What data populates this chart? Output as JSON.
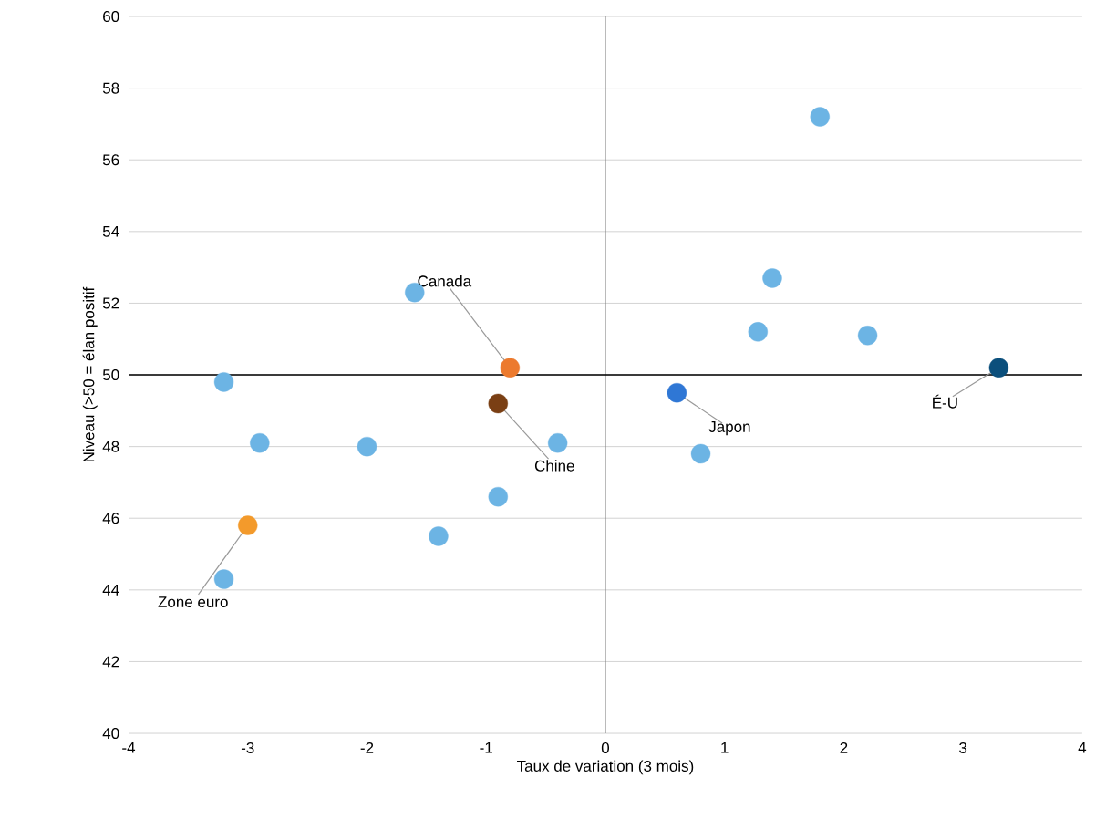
{
  "chart_data": {
    "type": "scatter",
    "xlabel": "Taux de variation (3 mois)",
    "ylabel": "Niveau (>50 = élan positif",
    "x": [
      -3.2,
      -2.9,
      -2.0,
      -3.0,
      -3.2,
      -1.4,
      -0.9,
      -0.9,
      -0.8,
      -1.6,
      -0.4,
      0.6,
      0.8,
      1.28,
      1.4,
      1.8,
      2.2,
      3.3
    ],
    "values": [
      49.8,
      48.1,
      48.0,
      45.8,
      44.3,
      45.5,
      46.6,
      49.2,
      50.2,
      52.3,
      48.1,
      49.5,
      47.8,
      51.2,
      52.7,
      57.2,
      51.1,
      50.2
    ],
    "colors": [
      "#6cb4e4",
      "#6cb4e4",
      "#6cb4e4",
      "#f39a2b",
      "#6cb4e4",
      "#6cb4e4",
      "#6cb4e4",
      "#7a3f14",
      "#ec7a2e",
      "#6cb4e4",
      "#6cb4e4",
      "#2f77d5",
      "#6cb4e4",
      "#6cb4e4",
      "#6cb4e4",
      "#6cb4e4",
      "#6cb4e4",
      "#0b4f7c"
    ],
    "xlim": [
      -4,
      4
    ],
    "xticks": [
      -4,
      -3,
      -2,
      -1,
      0,
      1,
      2,
      3,
      4
    ],
    "ylim": [
      40,
      60
    ],
    "yticks": [
      40,
      42,
      44,
      46,
      48,
      50,
      52,
      54,
      56,
      58,
      60
    ],
    "grid": "y",
    "ref_lines": [
      {
        "axis": "x",
        "value": 0,
        "color": "#808080"
      },
      {
        "axis": "y",
        "value": 50,
        "color": "#000000"
      }
    ],
    "annotations": [
      {
        "text": "Canada",
        "x": -0.8,
        "y": 50.2
      },
      {
        "text": "Chine",
        "x": -0.9,
        "y": 49.2
      },
      {
        "text": "Japon",
        "x": 0.6,
        "y": 49.5
      },
      {
        "text": "Zone euro",
        "x": -3.0,
        "y": 45.8
      },
      {
        "text": "É-U",
        "x": 3.3,
        "y": 50.2
      }
    ]
  }
}
